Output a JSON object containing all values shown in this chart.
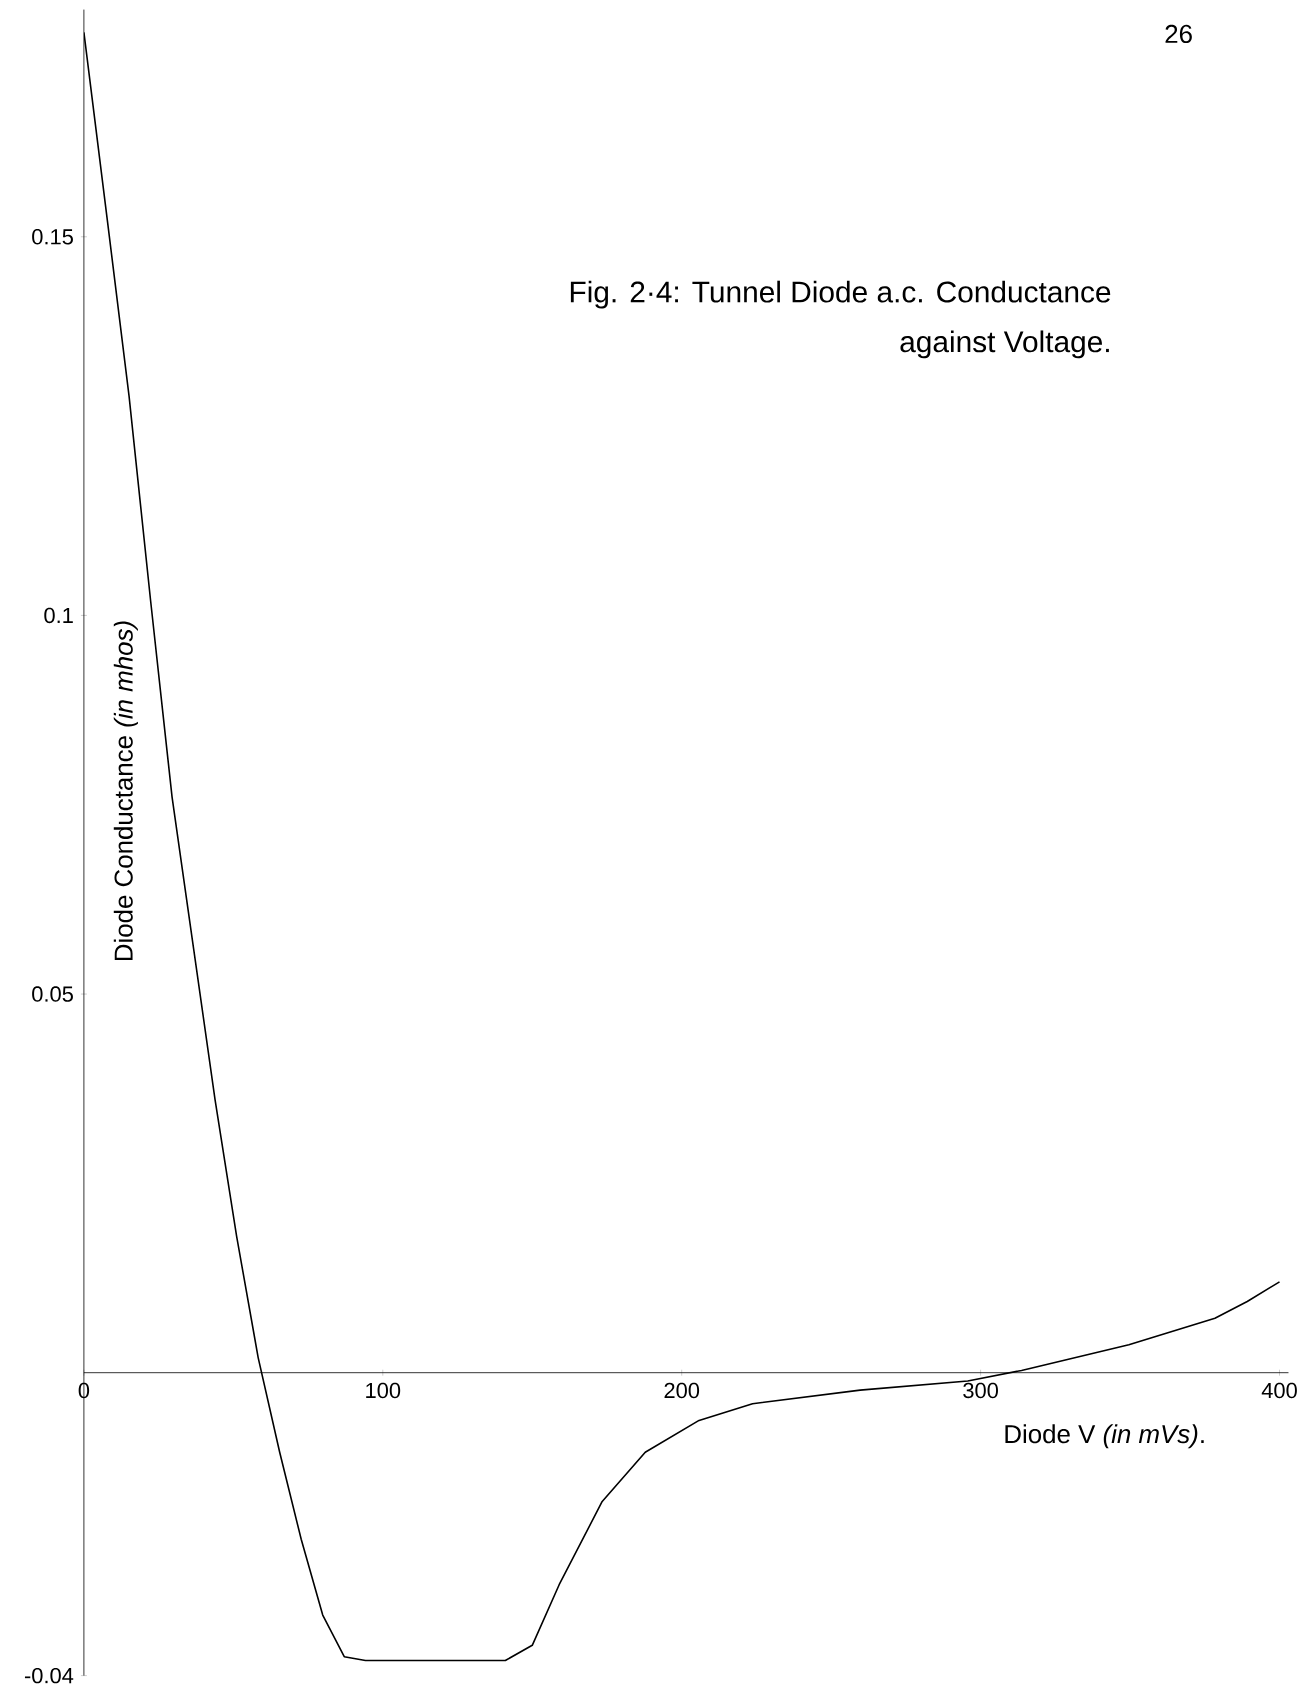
{
  "chart_data": {
    "type": "line",
    "title": "Fig. 2·4: Tunnel Diode a.c. Conductance against Voltage.",
    "xlabel": "Diode V *(in mVs)*.",
    "ylabel": "Diode Conductance *(in mhos)*",
    "annotations": [
      "26"
    ],
    "x": [
      0,
      7.9,
      15.1,
      22.3,
      29.5,
      36.7,
      43.9,
      51.1,
      58.3,
      65.5,
      72.7,
      79.9,
      87.1,
      94.2,
      115.8,
      141,
      150,
      159,
      173.4,
      187.8,
      205.8,
      223.7,
      259.7,
      295.7,
      313.7,
      349.6,
      378.4,
      389.2,
      400
    ],
    "series": [
      {
        "color": "#000000",
        "values": [
          0.177,
          0.152,
          0.129,
          0.102,
          0.076,
          0.056,
          0.036,
          0.018,
          0.002,
          -0.0105,
          -0.022,
          -0.032,
          -0.0375,
          -0.038,
          -0.038,
          -0.038,
          -0.036,
          -0.028,
          -0.017,
          -0.0105,
          -0.0063,
          -0.0041,
          -0.0023,
          -0.0011,
          0.0003,
          0.0037,
          0.0072,
          0.0094,
          0.012
        ]
      }
    ],
    "xlim": [
      0,
      403
    ],
    "ylim": [
      -0.04,
      0.18
    ],
    "xticks": [
      {
        "value": 0,
        "label": "0"
      },
      100,
      200,
      300,
      400
    ],
    "yticks": [
      -0.04,
      0.05,
      0.1,
      0.15
    ],
    "grid": false,
    "marker": "none",
    "line_style": "solid"
  }
}
